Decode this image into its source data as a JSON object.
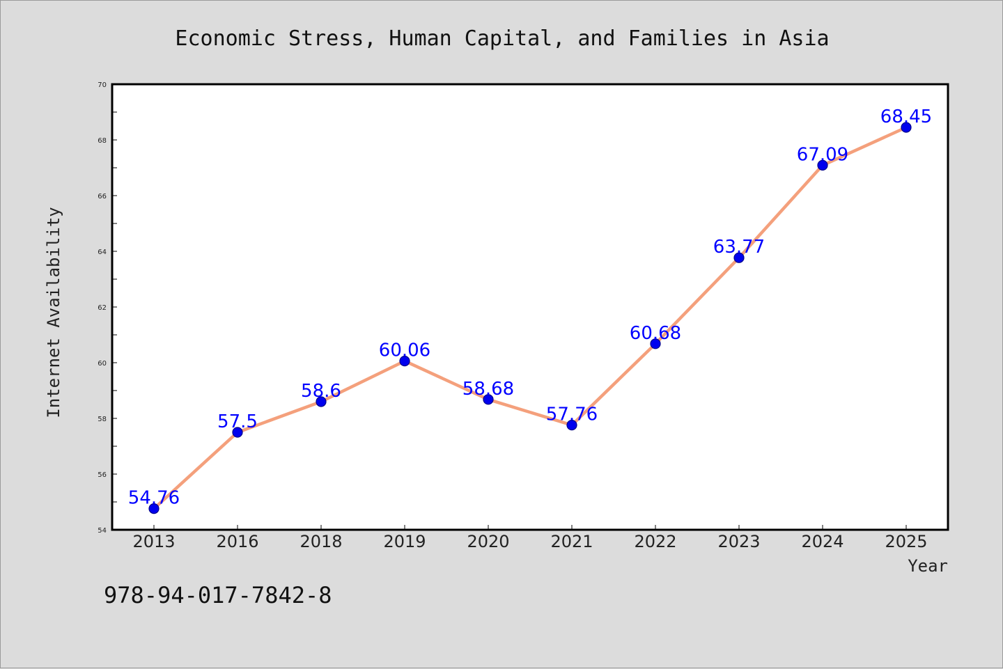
{
  "chart_data": {
    "type": "line",
    "title": "Economic Stress, Human Capital, and Families in Asia",
    "xlabel": "Year",
    "ylabel": "Internet Availability",
    "categories": [
      "2013",
      "2016",
      "2018",
      "2019",
      "2020",
      "2021",
      "2022",
      "2023",
      "2024",
      "2025"
    ],
    "series": [
      {
        "values": [
          54.76,
          57.5,
          58.6,
          60.06,
          58.68,
          57.76,
          60.68,
          63.77,
          67.09,
          68.45
        ],
        "labels": [
          "54.76",
          "57.5",
          "58.6",
          "60.06",
          "58.68",
          "57.76",
          "60.68",
          "63.77",
          "67.09",
          "68.45"
        ],
        "line_color": "#f4a07c",
        "marker_color": "#0000ee",
        "label_color": "#0000ff"
      }
    ],
    "ylim": [
      54,
      70
    ],
    "yticks": [
      "54",
      "56",
      "58",
      "60",
      "62",
      "64",
      "66",
      "68",
      "70"
    ],
    "grid": false,
    "legend": "none"
  },
  "footnote": "978-94-017-7842-8"
}
